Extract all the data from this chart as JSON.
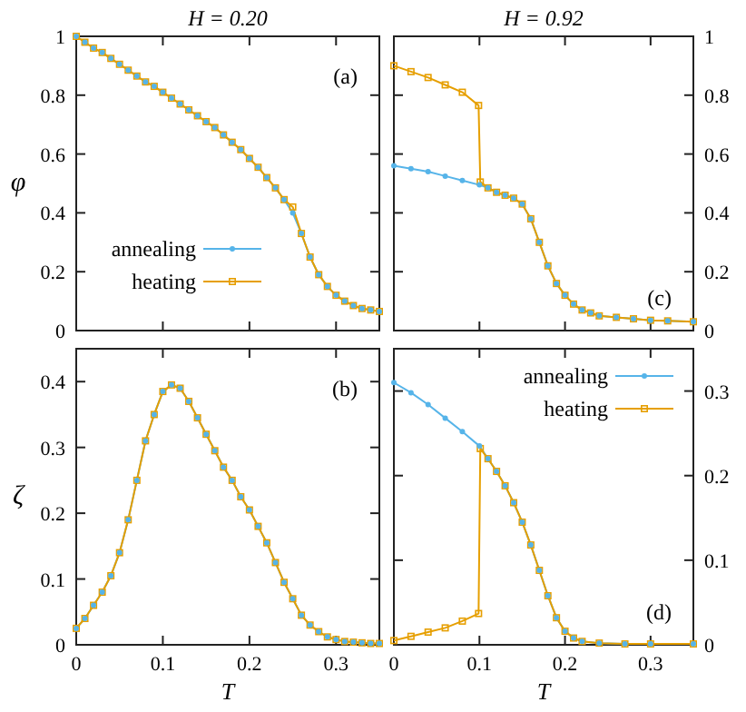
{
  "chart_data": [
    {
      "type": "line",
      "title": "H = 0.20",
      "ylabel": "φ",
      "annotations": [
        "(a)"
      ],
      "xlim": [
        0,
        0.35
      ],
      "xticks": [
        0,
        0.1,
        0.2,
        0.3
      ],
      "ylim": [
        0,
        1
      ],
      "yticks": [
        0,
        0.2,
        0.4,
        0.6,
        0.8,
        1
      ],
      "tick_labels": "y",
      "legend": "bottom left",
      "x": [
        0,
        0.01,
        0.02,
        0.03,
        0.04,
        0.05,
        0.06,
        0.07,
        0.08,
        0.09,
        0.1,
        0.11,
        0.12,
        0.13,
        0.14,
        0.15,
        0.16,
        0.17,
        0.18,
        0.19,
        0.2,
        0.21,
        0.22,
        0.23,
        0.24,
        0.25,
        0.26,
        0.27,
        0.28,
        0.29,
        0.3,
        0.31,
        0.32,
        0.33,
        0.34,
        0.35
      ],
      "series": [
        {
          "name": "annealing",
          "color": "#56b4e9",
          "marker": "circle",
          "values": [
            1.0,
            0.98,
            0.96,
            0.945,
            0.925,
            0.905,
            0.885,
            0.865,
            0.845,
            0.83,
            0.81,
            0.79,
            0.77,
            0.75,
            0.73,
            0.71,
            0.69,
            0.665,
            0.64,
            0.615,
            0.585,
            0.555,
            0.52,
            0.485,
            0.445,
            0.4,
            0.33,
            0.25,
            0.19,
            0.15,
            0.12,
            0.1,
            0.085,
            0.075,
            0.07,
            0.065
          ]
        },
        {
          "name": "heating",
          "color": "#e69f00",
          "marker": "square",
          "values": [
            1.0,
            0.98,
            0.96,
            0.945,
            0.925,
            0.905,
            0.885,
            0.865,
            0.845,
            0.83,
            0.81,
            0.79,
            0.77,
            0.75,
            0.73,
            0.71,
            0.69,
            0.665,
            0.64,
            0.615,
            0.585,
            0.555,
            0.52,
            0.485,
            0.445,
            0.42,
            0.33,
            0.25,
            0.19,
            0.15,
            0.12,
            0.1,
            0.085,
            0.075,
            0.07,
            0.065
          ]
        }
      ]
    },
    {
      "type": "line",
      "title": "H = 0.92",
      "annotations": [
        "(c)"
      ],
      "xlim": [
        0,
        0.35
      ],
      "xticks": [
        0,
        0.1,
        0.2,
        0.3
      ],
      "ylim": [
        0,
        1
      ],
      "yticks": [
        0,
        0.2,
        0.4,
        0.6,
        0.8,
        1
      ],
      "tick_labels": "y",
      "series": [
        {
          "color": "#56b4e9",
          "marker": "circle",
          "x": [
            0,
            0.02,
            0.04,
            0.06,
            0.08,
            0.1,
            0.11,
            0.12,
            0.13,
            0.14,
            0.15,
            0.16,
            0.17,
            0.18,
            0.19,
            0.2,
            0.21,
            0.22,
            0.23,
            0.24,
            0.26,
            0.28,
            0.3,
            0.32,
            0.35
          ],
          "values": [
            0.56,
            0.55,
            0.54,
            0.525,
            0.51,
            0.495,
            0.485,
            0.47,
            0.46,
            0.45,
            0.43,
            0.38,
            0.3,
            0.22,
            0.16,
            0.12,
            0.09,
            0.07,
            0.06,
            0.05,
            0.045,
            0.04,
            0.035,
            0.033,
            0.03
          ]
        },
        {
          "color": "#e69f00",
          "marker": "square",
          "x": [
            0,
            0.02,
            0.04,
            0.06,
            0.08,
            0.099,
            0.101,
            0.11,
            0.12,
            0.13,
            0.14,
            0.15,
            0.16,
            0.17,
            0.18,
            0.19,
            0.2,
            0.21,
            0.22,
            0.23,
            0.24,
            0.26,
            0.28,
            0.3,
            0.32,
            0.35
          ],
          "values": [
            0.9,
            0.88,
            0.86,
            0.835,
            0.81,
            0.765,
            0.505,
            0.485,
            0.47,
            0.46,
            0.45,
            0.43,
            0.38,
            0.3,
            0.22,
            0.16,
            0.12,
            0.09,
            0.07,
            0.06,
            0.05,
            0.045,
            0.04,
            0.035,
            0.033,
            0.03
          ]
        }
      ]
    },
    {
      "type": "line",
      "ylabel": "ζ",
      "xlabel": "T",
      "annotations": [
        "(b)"
      ],
      "xlim": [
        0,
        0.35
      ],
      "xticks": [
        0,
        0.1,
        0.2,
        0.3
      ],
      "ylim": [
        0,
        0.45
      ],
      "yticks": [
        0,
        0.1,
        0.2,
        0.3,
        0.4
      ],
      "x": [
        0,
        0.01,
        0.02,
        0.03,
        0.04,
        0.05,
        0.06,
        0.07,
        0.08,
        0.09,
        0.1,
        0.11,
        0.12,
        0.13,
        0.14,
        0.15,
        0.16,
        0.17,
        0.18,
        0.19,
        0.2,
        0.21,
        0.22,
        0.23,
        0.24,
        0.25,
        0.26,
        0.27,
        0.28,
        0.29,
        0.3,
        0.31,
        0.32,
        0.33,
        0.34,
        0.35
      ],
      "series": [
        {
          "color": "#56b4e9",
          "marker": "circle",
          "values": [
            0.025,
            0.04,
            0.06,
            0.08,
            0.105,
            0.14,
            0.19,
            0.25,
            0.31,
            0.35,
            0.385,
            0.395,
            0.39,
            0.37,
            0.345,
            0.32,
            0.295,
            0.27,
            0.25,
            0.225,
            0.205,
            0.18,
            0.155,
            0.125,
            0.095,
            0.07,
            0.045,
            0.03,
            0.02,
            0.012,
            0.008,
            0.005,
            0.004,
            0.003,
            0.002,
            0.002
          ]
        },
        {
          "color": "#e69f00",
          "marker": "square",
          "values": [
            0.025,
            0.04,
            0.06,
            0.08,
            0.105,
            0.14,
            0.19,
            0.25,
            0.31,
            0.35,
            0.385,
            0.395,
            0.39,
            0.37,
            0.345,
            0.32,
            0.295,
            0.27,
            0.25,
            0.225,
            0.205,
            0.18,
            0.155,
            0.125,
            0.095,
            0.07,
            0.045,
            0.03,
            0.02,
            0.012,
            0.008,
            0.005,
            0.004,
            0.003,
            0.002,
            0.002
          ]
        }
      ]
    },
    {
      "type": "line",
      "xlabel": "T",
      "annotations": [
        "(d)"
      ],
      "xlim": [
        0,
        0.35
      ],
      "xticks": [
        0,
        0.1,
        0.2,
        0.3
      ],
      "ylim": [
        0,
        0.35
      ],
      "yticks": [
        0,
        0.1,
        0.2,
        0.3
      ],
      "legend": "top right",
      "series": [
        {
          "name": "annealing",
          "color": "#56b4e9",
          "marker": "circle",
          "x": [
            0,
            0.02,
            0.04,
            0.06,
            0.08,
            0.1,
            0.11,
            0.12,
            0.13,
            0.14,
            0.15,
            0.16,
            0.17,
            0.18,
            0.19,
            0.2,
            0.21,
            0.22,
            0.24,
            0.27,
            0.3,
            0.35
          ],
          "values": [
            0.31,
            0.298,
            0.284,
            0.268,
            0.252,
            0.235,
            0.22,
            0.205,
            0.188,
            0.168,
            0.145,
            0.118,
            0.088,
            0.058,
            0.032,
            0.016,
            0.008,
            0.004,
            0.002,
            0.001,
            0.001,
            0.001
          ]
        },
        {
          "name": "heating",
          "color": "#e69f00",
          "marker": "square",
          "x": [
            0,
            0.02,
            0.04,
            0.06,
            0.08,
            0.099,
            0.101,
            0.11,
            0.12,
            0.13,
            0.14,
            0.15,
            0.16,
            0.17,
            0.18,
            0.19,
            0.2,
            0.21,
            0.22,
            0.24,
            0.27,
            0.3,
            0.35
          ],
          "values": [
            0.005,
            0.01,
            0.015,
            0.02,
            0.028,
            0.037,
            0.232,
            0.22,
            0.205,
            0.188,
            0.168,
            0.145,
            0.118,
            0.088,
            0.058,
            0.032,
            0.016,
            0.008,
            0.004,
            0.002,
            0.001,
            0.001,
            0.001
          ]
        }
      ]
    }
  ]
}
